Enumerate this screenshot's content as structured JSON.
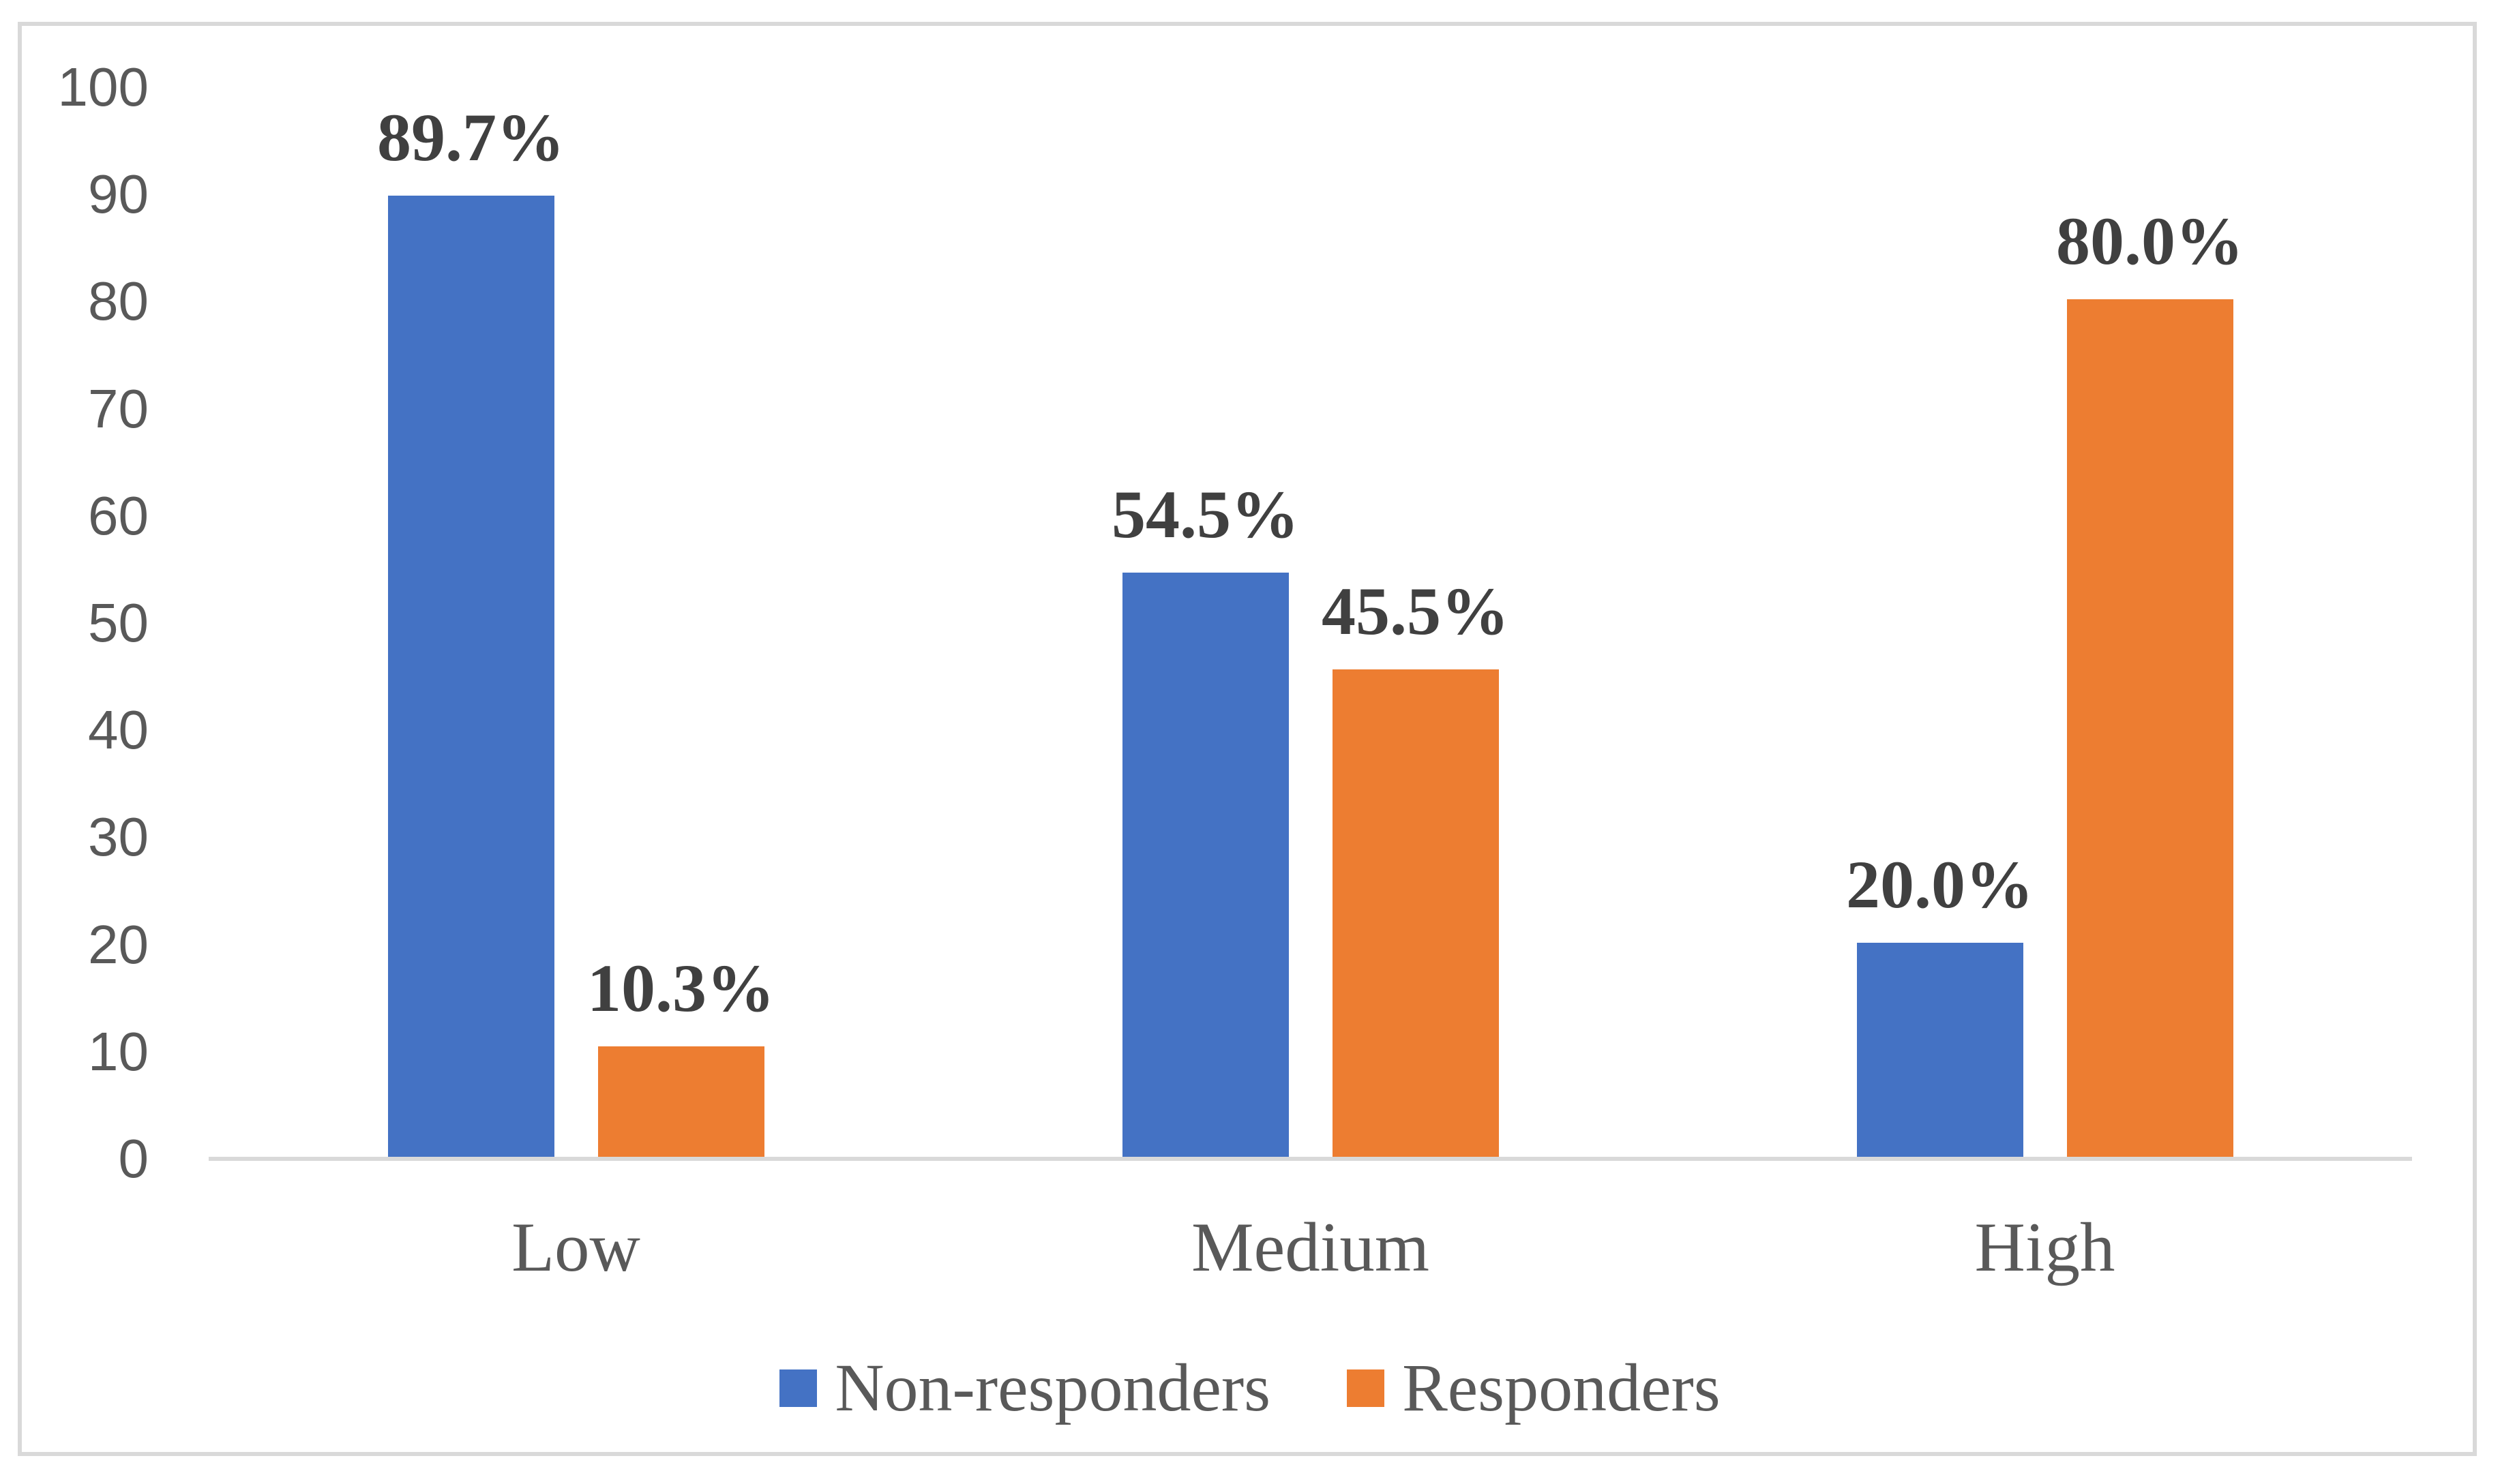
{
  "chart_data": {
    "type": "bar",
    "title": "",
    "xlabel": "",
    "ylabel": "",
    "categories": [
      "Low",
      "Medium",
      "High"
    ],
    "series": [
      {
        "name": "Non-responders",
        "color": "#4472C4",
        "values": [
          89.7,
          54.5,
          20.0
        ],
        "data_labels": [
          "89.7%",
          "54.5%",
          "20.0%"
        ]
      },
      {
        "name": "Responders",
        "color": "#ED7D31",
        "values": [
          10.3,
          45.5,
          80.0
        ],
        "data_labels": [
          "10.3%",
          "45.5%",
          "80.0%"
        ]
      }
    ],
    "ylim": [
      0,
      100
    ],
    "yticks": [
      0,
      10,
      20,
      30,
      40,
      50,
      60,
      70,
      80,
      90,
      100
    ],
    "grid": false,
    "legend_position": "bottom",
    "colors": {
      "axis_line": "#D9D9D9",
      "frame_border": "#D9D9D9",
      "tick_text": "#595959",
      "category_text": "#595959",
      "legend_text": "#595959",
      "data_label_text": "#404040",
      "background": "#ffffff"
    }
  }
}
